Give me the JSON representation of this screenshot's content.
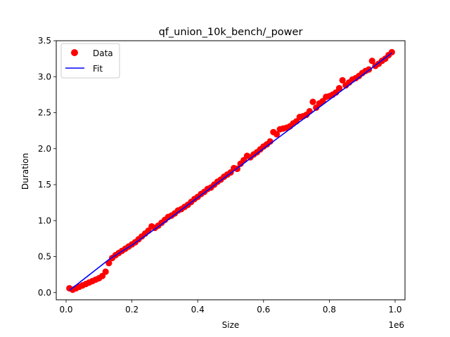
{
  "chart_data": {
    "type": "scatter",
    "title": "qf_union_10k_bench/_power",
    "xlabel": "Size",
    "ylabel": "Duration",
    "x_offset_label": "1e6",
    "xlim": [
      -30000,
      1030000
    ],
    "ylim": [
      -0.1,
      3.5
    ],
    "grid": false,
    "legend_position": "top-left",
    "x_ticks": [
      0.0,
      0.2,
      0.4,
      0.6,
      0.8,
      1.0
    ],
    "x_tick_labels": [
      "0.0",
      "0.2",
      "0.4",
      "0.6",
      "0.8",
      "1.0"
    ],
    "y_ticks": [
      0.0,
      0.5,
      1.0,
      1.5,
      2.0,
      2.5,
      3.0,
      3.5
    ],
    "y_tick_labels": [
      "0.0",
      "0.5",
      "1.0",
      "1.5",
      "2.0",
      "2.5",
      "3.0",
      "3.5"
    ],
    "series": [
      {
        "name": "Data",
        "kind": "scatter",
        "color": "#ff0000",
        "x": [
          10000,
          20000,
          30000,
          40000,
          50000,
          60000,
          70000,
          80000,
          90000,
          100000,
          110000,
          120000,
          130000,
          140000,
          150000,
          160000,
          170000,
          180000,
          190000,
          200000,
          210000,
          220000,
          230000,
          240000,
          250000,
          260000,
          270000,
          280000,
          290000,
          300000,
          310000,
          320000,
          330000,
          340000,
          350000,
          360000,
          370000,
          380000,
          390000,
          400000,
          410000,
          420000,
          430000,
          440000,
          450000,
          460000,
          470000,
          480000,
          490000,
          500000,
          510000,
          520000,
          530000,
          540000,
          550000,
          560000,
          570000,
          580000,
          590000,
          600000,
          610000,
          620000,
          630000,
          640000,
          650000,
          660000,
          670000,
          680000,
          690000,
          700000,
          710000,
          720000,
          730000,
          740000,
          750000,
          760000,
          770000,
          780000,
          790000,
          800000,
          810000,
          820000,
          830000,
          840000,
          850000,
          860000,
          870000,
          880000,
          890000,
          900000,
          910000,
          920000,
          930000,
          940000,
          950000,
          960000,
          970000,
          980000,
          990000
        ],
        "y": [
          0.06,
          0.04,
          0.06,
          0.08,
          0.1,
          0.12,
          0.14,
          0.16,
          0.18,
          0.2,
          0.23,
          0.29,
          0.41,
          0.48,
          0.52,
          0.55,
          0.58,
          0.61,
          0.64,
          0.67,
          0.7,
          0.74,
          0.78,
          0.82,
          0.86,
          0.92,
          0.9,
          0.93,
          0.97,
          1.01,
          1.05,
          1.07,
          1.1,
          1.14,
          1.16,
          1.19,
          1.22,
          1.26,
          1.3,
          1.33,
          1.37,
          1.4,
          1.44,
          1.46,
          1.5,
          1.54,
          1.57,
          1.61,
          1.64,
          1.67,
          1.73,
          1.72,
          1.79,
          1.84,
          1.9,
          1.88,
          1.92,
          1.95,
          1.99,
          2.03,
          2.06,
          2.1,
          2.23,
          2.2,
          2.27,
          2.28,
          2.29,
          2.31,
          2.35,
          2.38,
          2.44,
          2.45,
          2.47,
          2.52,
          2.65,
          2.57,
          2.63,
          2.66,
          2.72,
          2.73,
          2.75,
          2.78,
          2.84,
          2.95,
          2.88,
          2.92,
          2.96,
          2.98,
          3.01,
          3.05,
          3.08,
          3.1,
          3.22,
          3.15,
          3.18,
          3.22,
          3.25,
          3.3,
          3.34
        ]
      },
      {
        "name": "Fit",
        "kind": "line",
        "color": "#0000ff",
        "x": [
          10000,
          130000,
          200000,
          300000,
          400000,
          500000,
          600000,
          700000,
          800000,
          900000,
          990000
        ],
        "y": [
          0.03,
          0.46,
          0.66,
          0.98,
          1.32,
          1.66,
          2.0,
          2.34,
          2.68,
          3.02,
          3.33
        ]
      }
    ]
  }
}
